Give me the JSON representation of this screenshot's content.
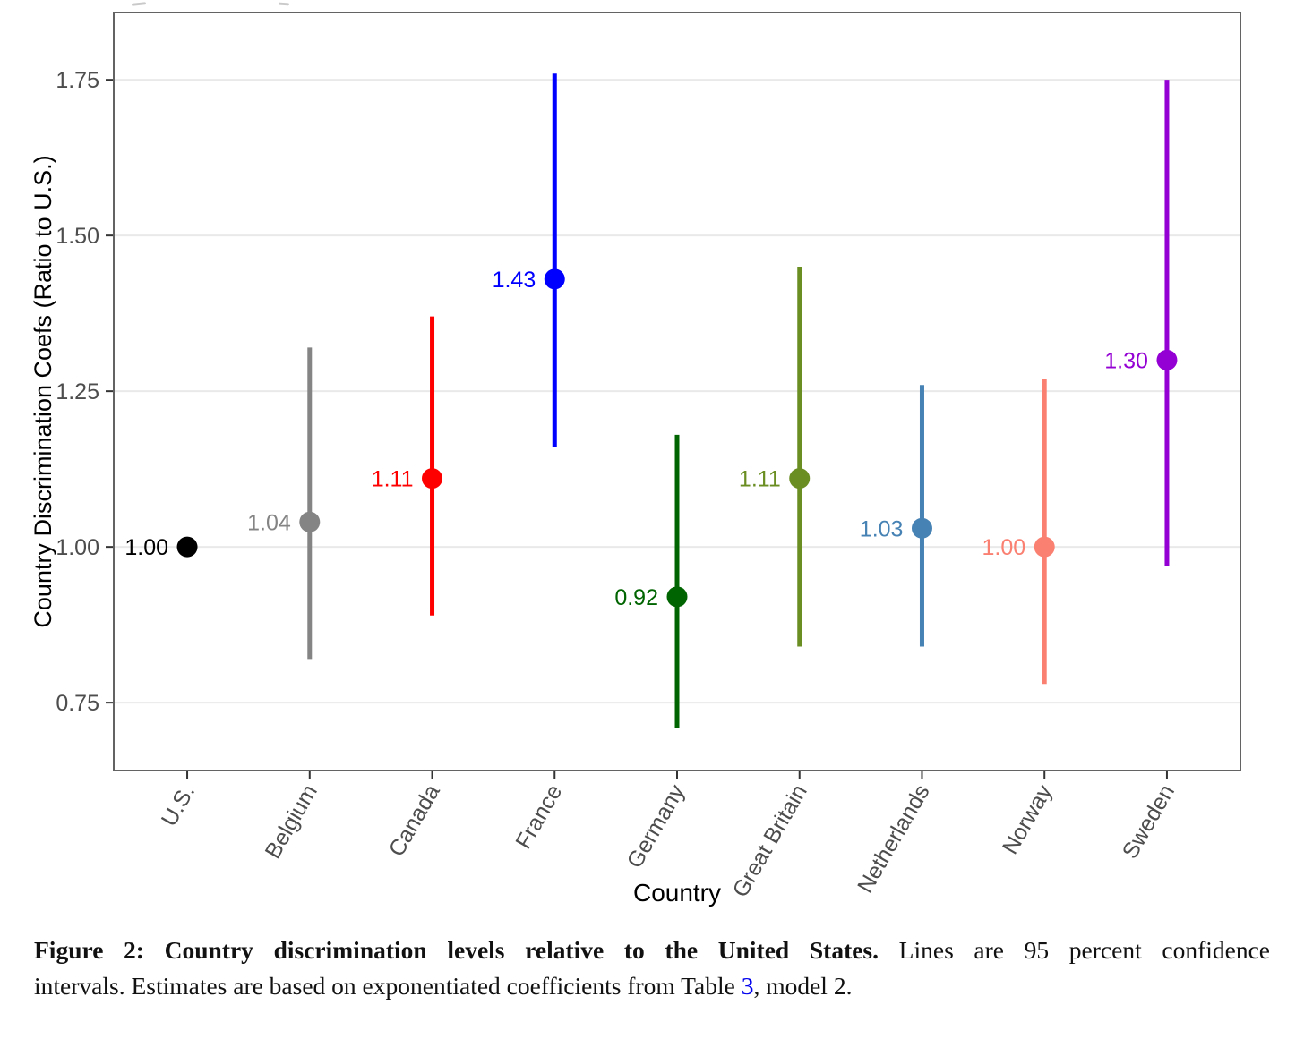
{
  "chart_data": {
    "type": "scatter",
    "title": "",
    "xlabel": "Country",
    "ylabel": "Country Discrimination Coefs (Ratio to U.S.)",
    "ylim": [
      0.641,
      1.858
    ],
    "yticks": [
      0.75,
      1.0,
      1.25,
      1.5,
      1.75
    ],
    "ytick_labels": [
      "0.75",
      "1.00",
      "1.25",
      "1.50",
      "1.75"
    ],
    "grid": "horizontal-major-only",
    "legend_position": "none",
    "error_bars": "95 percent confidence intervals",
    "categories": [
      "U.S.",
      "Belgium",
      "Canada",
      "France",
      "Germany",
      "Great Britain",
      "Netherlands",
      "Norway",
      "Sweden"
    ],
    "points": [
      {
        "country": "U.S.",
        "estimate": 1.0,
        "label": "1.00",
        "ci_low": null,
        "ci_high": null,
        "color": "#000000"
      },
      {
        "country": "Belgium",
        "estimate": 1.04,
        "label": "1.04",
        "ci_low": 0.82,
        "ci_high": 1.32,
        "color": "#848484"
      },
      {
        "country": "Canada",
        "estimate": 1.11,
        "label": "1.11",
        "ci_low": 0.89,
        "ci_high": 1.37,
        "color": "#fe0000"
      },
      {
        "country": "France",
        "estimate": 1.43,
        "label": "1.43",
        "ci_low": 1.16,
        "ci_high": 1.76,
        "color": "#0000fe"
      },
      {
        "country": "Germany",
        "estimate": 0.92,
        "label": "0.92",
        "ci_low": 0.71,
        "ci_high": 1.18,
        "color": "#006400"
      },
      {
        "country": "Great Britain",
        "estimate": 1.11,
        "label": "1.11",
        "ci_low": 0.84,
        "ci_high": 1.45,
        "color": "#6b8e23"
      },
      {
        "country": "Netherlands",
        "estimate": 1.03,
        "label": "1.03",
        "ci_low": 0.84,
        "ci_high": 1.26,
        "color": "#4682b4"
      },
      {
        "country": "Norway",
        "estimate": 1.0,
        "label": "1.00",
        "ci_low": 0.78,
        "ci_high": 1.27,
        "color": "#fa8072"
      },
      {
        "country": "Sweden",
        "estimate": 1.3,
        "label": "1.30",
        "ci_low": 0.97,
        "ci_high": 1.75,
        "color": "#9400d3"
      }
    ]
  },
  "caption": {
    "line1_bold": "Figure 2: Country discrimination levels relative to the United States.",
    "line1_rest": "Lines are 95 percent confidence",
    "line2_pre": "intervals. Estimates are based on exponentiated coefficients from Table ",
    "line2_link": "3",
    "line2_post": ", model 2."
  }
}
